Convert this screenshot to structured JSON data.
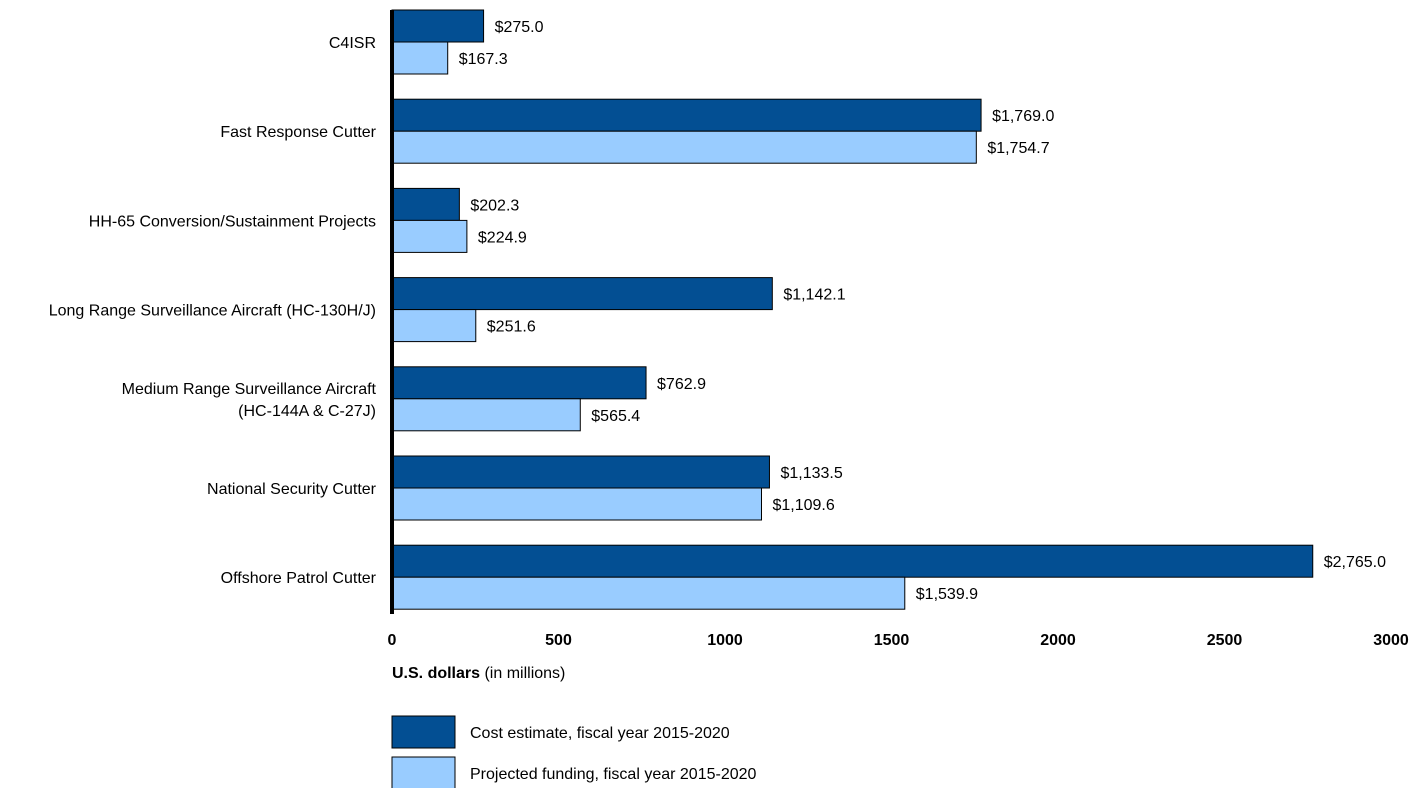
{
  "chart_data": {
    "type": "bar",
    "orientation": "horizontal",
    "categories": [
      [
        "C4ISR"
      ],
      [
        "Fast Response Cutter"
      ],
      [
        "HH-65 Conversion/Sustainment Projects"
      ],
      [
        "Long Range Surveillance Aircraft (HC-130H/J)"
      ],
      [
        "Medium Range Surveillance Aircraft",
        "(HC-144A & C-27J)"
      ],
      [
        "National Security Cutter"
      ],
      [
        "Offshore Patrol Cutter"
      ]
    ],
    "series": [
      {
        "name": "Cost estimate, fiscal year 2015-2020",
        "color": "#034f93",
        "values": [
          275.0,
          1769.0,
          202.3,
          1142.1,
          762.9,
          1133.5,
          2765.0
        ],
        "labels": [
          "$275.0",
          "$1,769.0",
          "$202.3",
          "$1,142.1",
          "$762.9",
          "$1,133.5",
          "$2,765.0"
        ]
      },
      {
        "name": "Projected funding, fiscal year 2015-2020",
        "color": "#99ccff",
        "values": [
          167.3,
          1754.7,
          224.9,
          251.6,
          565.4,
          1109.6,
          1539.9
        ],
        "labels": [
          "$167.3",
          "$1,754.7",
          "$224.9",
          "$251.6",
          "$565.4",
          "$1,109.6",
          "$1,539.9"
        ]
      }
    ],
    "xlim": [
      0,
      3000
    ],
    "xticks": [
      0,
      500,
      1000,
      1500,
      2000,
      2500,
      3000
    ],
    "xticklabels": [
      "0",
      "500",
      "1000",
      "1500",
      "2000",
      "2500",
      "3000"
    ],
    "xlabel_bold": "U.S. dollars",
    "xlabel_rest": " (in millions)",
    "legend_placement": "bottom-left",
    "grid": false
  }
}
